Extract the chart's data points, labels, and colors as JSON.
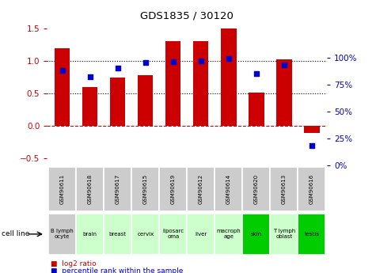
{
  "title": "GDS1835 / 30120",
  "gsm_labels": [
    "GSM90611",
    "GSM90618",
    "GSM90617",
    "GSM90615",
    "GSM90619",
    "GSM90612",
    "GSM90614",
    "GSM90620",
    "GSM90613",
    "GSM90616"
  ],
  "cell_label_short": [
    "B lymph\nocyte",
    "brain",
    "breast",
    "cervix",
    "liposarc\noma",
    "liver",
    "macroph\nage",
    "skin",
    "T lymph\noblast",
    "testis"
  ],
  "log2_ratio": [
    1.2,
    0.6,
    0.75,
    0.78,
    1.3,
    1.3,
    1.5,
    0.52,
    1.03,
    -0.1
  ],
  "percentile_rank": [
    88,
    82,
    90,
    95,
    96,
    97,
    99,
    85,
    93,
    18
  ],
  "bar_color": "#cc0000",
  "dot_color": "#0000cc",
  "ylim_left": [
    -0.6,
    1.6
  ],
  "ylim_right": [
    0,
    133
  ],
  "yticks_left": [
    -0.5,
    0.0,
    0.5,
    1.0,
    1.5
  ],
  "yticks_right": [
    0,
    25,
    50,
    75,
    100
  ],
  "hlines": [
    0.0,
    0.5,
    1.0
  ],
  "hline_styles": [
    "--",
    ":",
    ":"
  ],
  "hline_colors": [
    "#cc0000",
    "#000000",
    "#000000"
  ],
  "cell_bg_colors": [
    "#cccccc",
    "#ccffcc",
    "#ccffcc",
    "#ccffcc",
    "#ccffcc",
    "#ccffcc",
    "#ccffcc",
    "#00cc00",
    "#ccffcc",
    "#00cc00"
  ],
  "bar_color_left_axis": "#cc0000",
  "pct_color_right_axis": "#0000cc"
}
